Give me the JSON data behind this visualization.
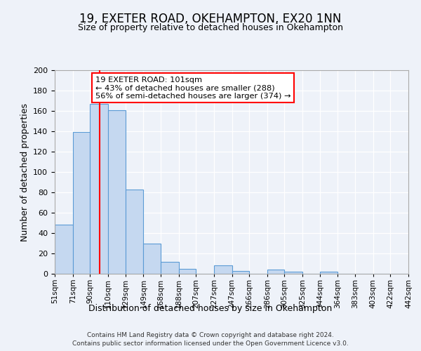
{
  "title": "19, EXETER ROAD, OKEHAMPTON, EX20 1NN",
  "subtitle": "Size of property relative to detached houses in Okehampton",
  "xlabel": "Distribution of detached houses by size in Okehampton",
  "ylabel": "Number of detached properties",
  "bin_labels": [
    "51sqm",
    "71sqm",
    "90sqm",
    "110sqm",
    "129sqm",
    "149sqm",
    "168sqm",
    "188sqm",
    "207sqm",
    "227sqm",
    "247sqm",
    "266sqm",
    "286sqm",
    "305sqm",
    "325sqm",
    "344sqm",
    "364sqm",
    "383sqm",
    "403sqm",
    "422sqm",
    "442sqm"
  ],
  "bar_values": [
    48,
    139,
    167,
    161,
    83,
    30,
    12,
    5,
    0,
    8,
    3,
    0,
    4,
    2,
    0,
    2,
    0,
    0,
    0,
    0
  ],
  "bin_edges": [
    51,
    71,
    90,
    110,
    129,
    149,
    168,
    188,
    207,
    227,
    247,
    266,
    286,
    305,
    325,
    344,
    364,
    383,
    403,
    422,
    442
  ],
  "bar_color": "#c5d8f0",
  "bar_edge_color": "#5b9bd5",
  "red_line_x": 101,
  "annotation_text": "19 EXETER ROAD: 101sqm\n← 43% of detached houses are smaller (288)\n56% of semi-detached houses are larger (374) →",
  "ylim": [
    0,
    200
  ],
  "yticks": [
    0,
    20,
    40,
    60,
    80,
    100,
    120,
    140,
    160,
    180,
    200
  ],
  "bg_color": "#eef2f9",
  "grid_color": "#ffffff",
  "footer_line1": "Contains HM Land Registry data © Crown copyright and database right 2024.",
  "footer_line2": "Contains public sector information licensed under the Open Government Licence v3.0."
}
